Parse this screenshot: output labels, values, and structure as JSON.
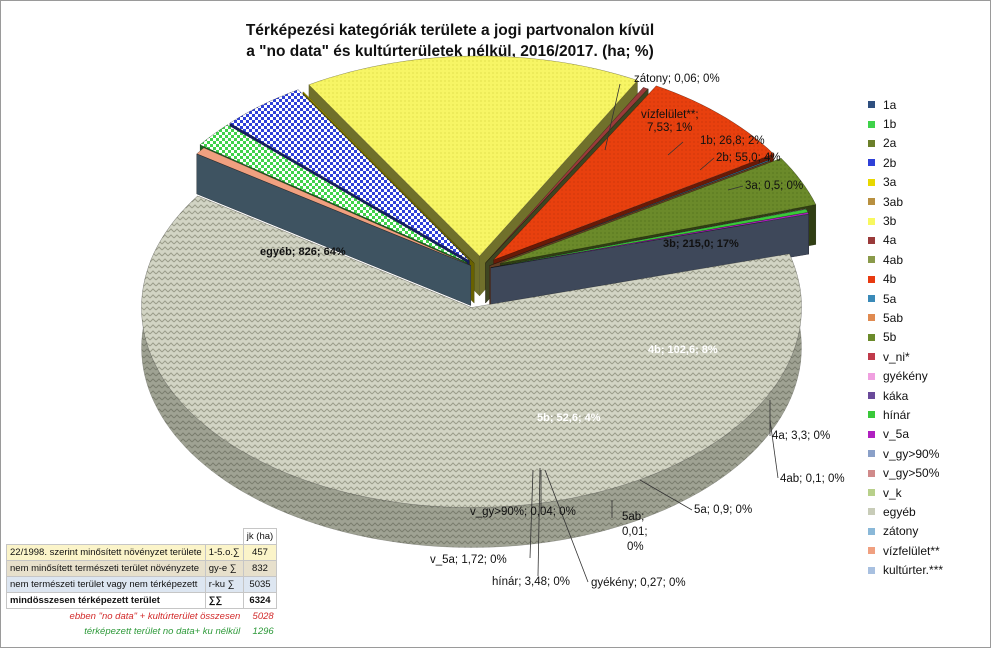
{
  "chart_data": {
    "type": "pie",
    "title_lines": [
      "Térképezési kategóriák területe a jogi partvonalon kívül",
      "a \"no data\" és kultúrterületek nélkül, 2016/2017. (ha; %)"
    ],
    "slices": [
      {
        "name": "1a",
        "value": 0,
        "color": "#2f4f7f"
      },
      {
        "name": "1b",
        "value": 26.8,
        "color": "#3fd24a"
      },
      {
        "name": "2a",
        "value": 0,
        "color": "#6b7f2a"
      },
      {
        "name": "2b",
        "value": 55.0,
        "color": "#2f40d8"
      },
      {
        "name": "3a",
        "value": 0.5,
        "color": "#e8d800"
      },
      {
        "name": "3ab",
        "value": 0,
        "color": "#b89040"
      },
      {
        "name": "3b",
        "value": 215.0,
        "color": "#f8f860"
      },
      {
        "name": "4a",
        "value": 3.3,
        "color": "#9a3a3a"
      },
      {
        "name": "4ab",
        "value": 0.1,
        "color": "#8a9a4a"
      },
      {
        "name": "4b",
        "value": 102.6,
        "color": "#e83a10"
      },
      {
        "name": "5a",
        "value": 0.9,
        "color": "#3a8ab8"
      },
      {
        "name": "5ab",
        "value": 0.01,
        "color": "#e08a50"
      },
      {
        "name": "5b",
        "value": 52.6,
        "color": "#6b8a2a"
      },
      {
        "name": "v_ni*",
        "value": 0,
        "color": "#c03a4a"
      },
      {
        "name": "gyékény",
        "value": 0.27,
        "color": "#f0a0e0"
      },
      {
        "name": "káka",
        "value": 0,
        "color": "#6a4a9a"
      },
      {
        "name": "hínár",
        "value": 3.48,
        "color": "#3ac83a"
      },
      {
        "name": "v_5a",
        "value": 1.72,
        "color": "#b020c0"
      },
      {
        "name": "v_gy>90%",
        "value": 0.04,
        "color": "#8aa0c8"
      },
      {
        "name": "v_gy>50%",
        "value": 0,
        "color": "#d08a8a"
      },
      {
        "name": "v_k",
        "value": 0,
        "color": "#b8d08a"
      },
      {
        "name": "egyéb",
        "value": 826,
        "color": "#c8ccb8"
      },
      {
        "name": "zátony",
        "value": 0.06,
        "color": "#8ab8d8"
      },
      {
        "name": "vízfelület**",
        "value": 7.53,
        "color": "#f0a080"
      },
      {
        "name": "kultúrter.***",
        "value": 0,
        "color": "#a8c0e0"
      }
    ],
    "data_labels": [
      "zátony; 0,06; 0%",
      "vízfelület**;",
      "7,53; 1%",
      "1b; 26,8; 2%",
      "2b; 55,0; 4%",
      "3a; 0,5; 0%",
      "3b; 215,0; 17%",
      "4b; 102,6; 8%",
      "4a; 3,3; 0%",
      "4ab; 0,1; 0%",
      "5a; 0,9; 0%",
      "5ab;",
      "0,01;",
      "0%",
      "5b; 52,6; 4%",
      "v_gy>90%; 0,04; 0%",
      "v_5a; 1,72; 0%",
      "hínár; 3,48; 0%",
      "gyékény; 0,27; 0%",
      "egyéb; 826; 64%"
    ]
  },
  "table": {
    "header": "jk (ha)",
    "rows": [
      {
        "label": "22/1998. szerint minősített növényzet területe",
        "code": "1-5.o.∑",
        "value": "457"
      },
      {
        "label": "nem minősített természeti terület növényzete",
        "code": "gy-e ∑",
        "value": "832"
      },
      {
        "label": "nem természeti terület vagy nem térképezett",
        "code": "r-ku ∑",
        "value": "5035"
      },
      {
        "label": "mindösszesen térképezett terület",
        "code": "∑∑",
        "value": "6324"
      }
    ],
    "note1_text": "ebben \"no data\" + kultúrterület összesen",
    "note1_value": "5028",
    "note2_text": "térképezett terület no data+ ku nélkül",
    "note2_value": "1296"
  }
}
